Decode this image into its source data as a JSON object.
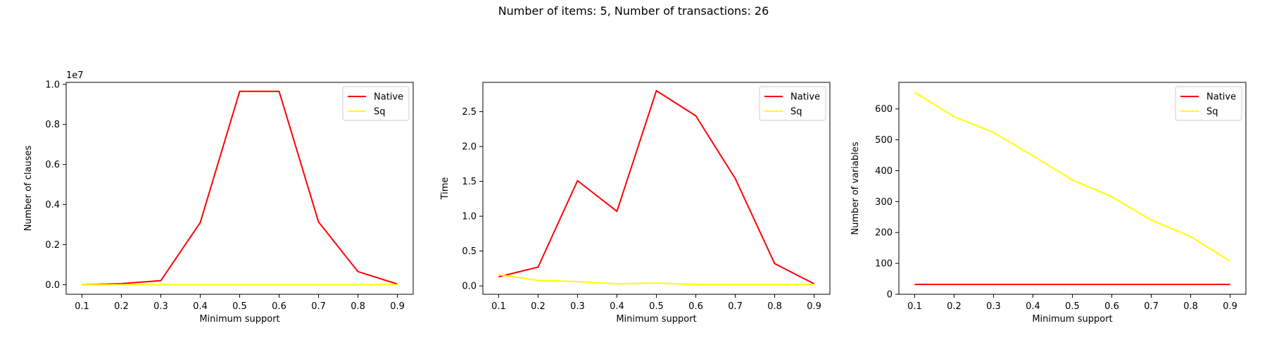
{
  "figure": {
    "title": "Number of items: 5, Number of transactions: 26"
  },
  "colors": {
    "native": "#ff0000",
    "sq": "#ffff00",
    "axis": "#000000",
    "legend_border": "#cccccc"
  },
  "chart_data": [
    {
      "type": "line",
      "title": "",
      "xlabel": "Minimum support",
      "ylabel": "Number of clauses",
      "offset_label": "1e7",
      "x": [
        0.1,
        0.2,
        0.3,
        0.4,
        0.5,
        0.6,
        0.7,
        0.8,
        0.9
      ],
      "xticks": [
        "0.1",
        "0.2",
        "0.3",
        "0.4",
        "0.5",
        "0.6",
        "0.7",
        "0.8",
        "0.9"
      ],
      "ylim": [
        -0.048,
        1.01
      ],
      "yticks": [
        0.0,
        0.2,
        0.4,
        0.6,
        0.8,
        1.0
      ],
      "ytick_labels": [
        "0.0",
        "0.2",
        "0.4",
        "0.6",
        "0.8",
        "1.0"
      ],
      "legend_loc": "upper right",
      "grid": false,
      "series": [
        {
          "name": "Native",
          "color": "#ff0000",
          "values": [
            0.0,
            0.005,
            0.02,
            0.31,
            0.965,
            0.965,
            0.313,
            0.065,
            0.003
          ]
        },
        {
          "name": "Sq",
          "color": "#ffff00",
          "values": [
            0.0,
            0.0,
            0.0,
            0.0,
            0.0,
            0.0,
            0.0,
            0.0,
            0.0
          ]
        }
      ]
    },
    {
      "type": "line",
      "title": "",
      "xlabel": "Minimum support",
      "ylabel": "Time",
      "offset_label": "",
      "x": [
        0.1,
        0.2,
        0.3,
        0.4,
        0.5,
        0.6,
        0.7,
        0.8,
        0.9
      ],
      "xticks": [
        "0.1",
        "0.2",
        "0.3",
        "0.4",
        "0.5",
        "0.6",
        "0.7",
        "0.8",
        "0.9"
      ],
      "ylim": [
        -0.12,
        2.92
      ],
      "yticks": [
        0.0,
        0.5,
        1.0,
        1.5,
        2.0,
        2.5
      ],
      "ytick_labels": [
        "0.0",
        "0.5",
        "1.0",
        "1.5",
        "2.0",
        "2.5"
      ],
      "legend_loc": "upper right",
      "grid": false,
      "series": [
        {
          "name": "Native",
          "color": "#ff0000",
          "values": [
            0.13,
            0.27,
            1.51,
            1.07,
            2.8,
            2.44,
            1.54,
            0.32,
            0.03
          ]
        },
        {
          "name": "Sq",
          "color": "#ffff00",
          "values": [
            0.16,
            0.08,
            0.06,
            0.03,
            0.04,
            0.02,
            0.02,
            0.02,
            0.02
          ]
        }
      ]
    },
    {
      "type": "line",
      "title": "",
      "xlabel": "Minimum support",
      "ylabel": "Number of variables",
      "offset_label": "",
      "x": [
        0.1,
        0.2,
        0.3,
        0.4,
        0.5,
        0.6,
        0.7,
        0.8,
        0.9
      ],
      "xticks": [
        "0.1",
        "0.2",
        "0.3",
        "0.4",
        "0.5",
        "0.6",
        "0.7",
        "0.8",
        "0.9"
      ],
      "ylim": [
        0,
        686
      ],
      "yticks": [
        0,
        100,
        200,
        300,
        400,
        500,
        600
      ],
      "ytick_labels": [
        "0",
        "100",
        "200",
        "300",
        "400",
        "500",
        "600"
      ],
      "legend_loc": "upper right",
      "grid": false,
      "series": [
        {
          "name": "Native",
          "color": "#ff0000",
          "values": [
            32,
            32,
            32,
            32,
            32,
            32,
            32,
            32,
            32
          ]
        },
        {
          "name": "Sq",
          "color": "#ffff00",
          "values": [
            654,
            575,
            524,
            448,
            370,
            316,
            240,
            187,
            107
          ]
        }
      ]
    }
  ]
}
